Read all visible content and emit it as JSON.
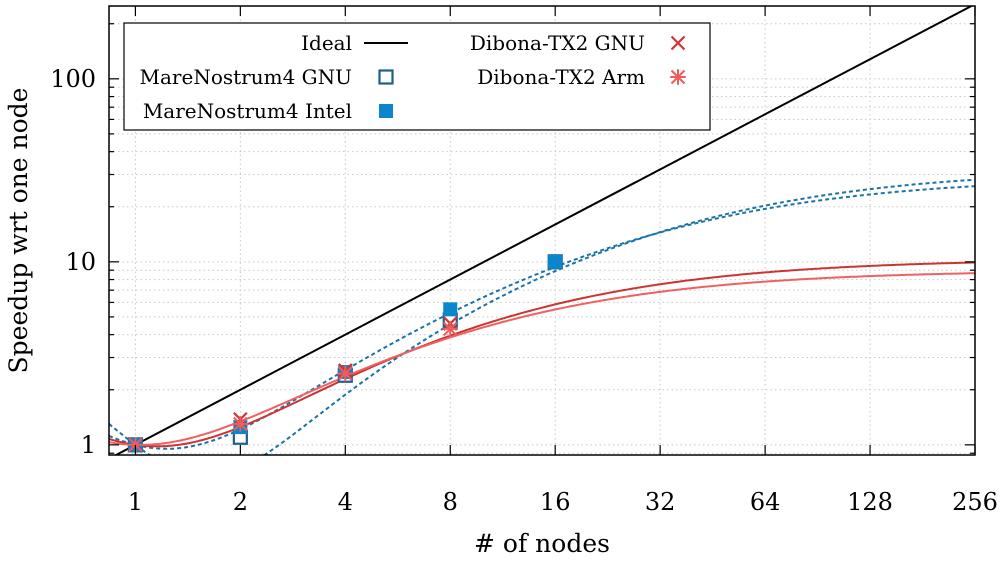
{
  "chart_data": {
    "type": "line",
    "title": "",
    "xlabel": "# of nodes",
    "ylabel": "Speedup wrt one node",
    "xscale": "log2",
    "yscale": "log10",
    "xlim": [
      0.84,
      256
    ],
    "ylim": [
      0.88,
      250
    ],
    "x_ticks": [
      1,
      2,
      4,
      8,
      16,
      32,
      64,
      128,
      256
    ],
    "x_tick_labels": [
      "1",
      "2",
      "4",
      "8",
      "16",
      "32",
      "64",
      "128",
      "256"
    ],
    "y_ticks": [
      1,
      10,
      100
    ],
    "y_tick_labels": [
      "1",
      "10",
      "100"
    ],
    "grid": true,
    "legend_position": "top-left",
    "series": [
      {
        "name": "Ideal",
        "kind": "ideal",
        "color": "#000000"
      },
      {
        "name": "MareNostrum4 GNU",
        "kind": "points-fit",
        "marker": "open-square",
        "color": "#1f5f8b",
        "fit_color": "#1a73a8",
        "x": [
          1,
          2,
          4,
          8,
          16
        ],
        "y": [
          1.0,
          1.1,
          2.4,
          4.8,
          10.0
        ],
        "fit": {
          "a": 34.5,
          "b": 1.2
        }
      },
      {
        "name": "MareNostrum4 Intel",
        "kind": "points-fit",
        "marker": "filled-square",
        "color": "#0a87cc",
        "fit_color": "#1a73a8",
        "x": [
          1,
          2,
          4,
          8,
          16
        ],
        "y": [
          1.0,
          1.25,
          2.5,
          5.5,
          10.0
        ],
        "fit": {
          "a": 30.5,
          "b": 0.72
        }
      },
      {
        "name": "Dibona-TX2 GNU",
        "kind": "points-fit",
        "marker": "cross",
        "color": "#cf3535",
        "fit_color": "#cc3333",
        "x": [
          1,
          2,
          4,
          8
        ],
        "y": [
          1.0,
          1.38,
          2.55,
          4.6
        ],
        "fit": {
          "a": 11.55,
          "b": 0.59
        }
      },
      {
        "name": "Dibona-TX2 Arm",
        "kind": "points-fit",
        "marker": "star",
        "color": "#f05b5b",
        "fit_color": "#f06060",
        "x": [
          1,
          2,
          4,
          8
        ],
        "y": [
          1.0,
          1.3,
          2.45,
          4.3
        ],
        "fit": {
          "a": 9.95,
          "b": 0.475
        }
      }
    ]
  }
}
